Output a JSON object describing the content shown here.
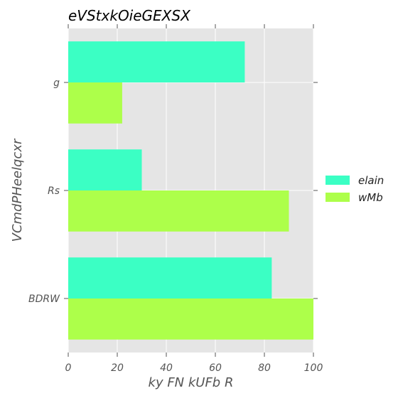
{
  "chart_data": {
    "type": "bar",
    "orientation": "horizontal",
    "title": "eVStxkOieGEXSX",
    "xlabel": "ky FN kUFb R",
    "ylabel": "VCmdPHeelqcxr",
    "categories": [
      "g",
      "Rs",
      "BDRW"
    ],
    "series": [
      {
        "name": "elain",
        "values": [
          72,
          30,
          83
        ],
        "color": "#3bffc4"
      },
      {
        "name": "wMb",
        "values": [
          22,
          90,
          100
        ],
        "color": "#adff4a"
      }
    ],
    "xlim": [
      0,
      100
    ],
    "xticks": [
      0,
      20,
      40,
      60,
      80,
      100
    ],
    "grid": true,
    "legend_position": "right",
    "background_color": "#e5e5e5"
  }
}
